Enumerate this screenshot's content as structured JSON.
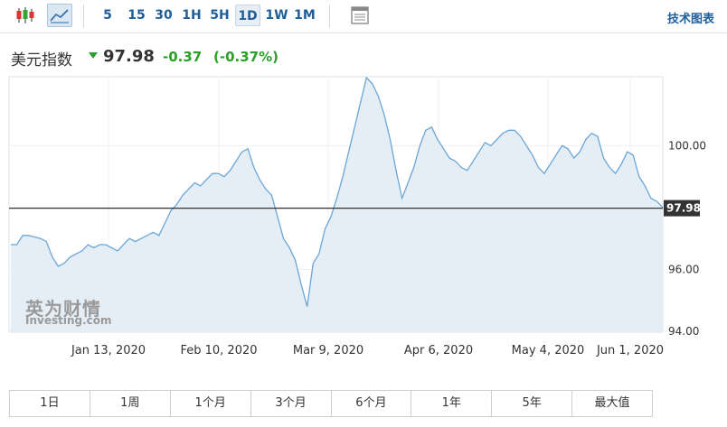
{
  "toolbar": {
    "timeframes": [
      "5",
      "15",
      "30",
      "1H",
      "5H",
      "1D",
      "1W",
      "1M"
    ],
    "active_timeframe": "1D",
    "tech_chart_link": "技术图表"
  },
  "header": {
    "name": "美元指数",
    "price": "97.98",
    "change": "-0.37",
    "change_pct": "(-0.37%)",
    "change_color": "#2aa02a"
  },
  "watermark": {
    "cn": "英为财情",
    "en": "Investing.com"
  },
  "periods": [
    "1日",
    "1周",
    "1个月",
    "3个月",
    "6个月",
    "1年",
    "5年",
    "最大值"
  ],
  "chart_data": {
    "type": "area",
    "x_tick_labels": [
      "Jan 13, 2020",
      "Feb 10, 2020",
      "Mar 9, 2020",
      "Apr 6, 2020",
      "May 4, 2020",
      "Jun 1, 2020"
    ],
    "y_tick_labels": [
      "100.00",
      "98.00",
      "96.00",
      "94.00"
    ],
    "current_value_label": "97.98",
    "ylim": [
      94,
      102.2
    ],
    "reference_line": 97.98,
    "line_color": "#6aa6d8",
    "fill_color": "#e6eef5",
    "values": [
      96.8,
      96.8,
      97.1,
      97.1,
      97.05,
      97.0,
      96.9,
      96.4,
      96.1,
      96.2,
      96.4,
      96.5,
      96.6,
      96.8,
      96.7,
      96.8,
      96.8,
      96.7,
      96.6,
      96.8,
      97.0,
      96.9,
      97.0,
      97.1,
      97.2,
      97.1,
      97.5,
      97.9,
      98.1,
      98.4,
      98.6,
      98.8,
      98.7,
      98.9,
      99.1,
      99.1,
      99.0,
      99.2,
      99.5,
      99.8,
      99.9,
      99.3,
      98.9,
      98.6,
      98.4,
      97.7,
      97.0,
      96.7,
      96.3,
      95.5,
      94.8,
      96.2,
      96.5,
      97.3,
      97.7,
      98.3,
      99.0,
      99.8,
      100.6,
      101.4,
      102.2,
      102.0,
      101.6,
      101.0,
      100.2,
      99.2,
      98.3,
      98.8,
      99.3,
      100.0,
      100.5,
      100.6,
      100.2,
      99.9,
      99.6,
      99.5,
      99.3,
      99.2,
      99.5,
      99.8,
      100.1,
      100.0,
      100.2,
      100.4,
      100.5,
      100.5,
      100.3,
      100.0,
      99.7,
      99.3,
      99.1,
      99.4,
      99.7,
      100.0,
      99.9,
      99.6,
      99.8,
      100.2,
      100.4,
      100.3,
      99.6,
      99.3,
      99.1,
      99.4,
      99.8,
      99.7,
      99.0,
      98.7,
      98.3,
      98.2,
      98.0
    ]
  }
}
